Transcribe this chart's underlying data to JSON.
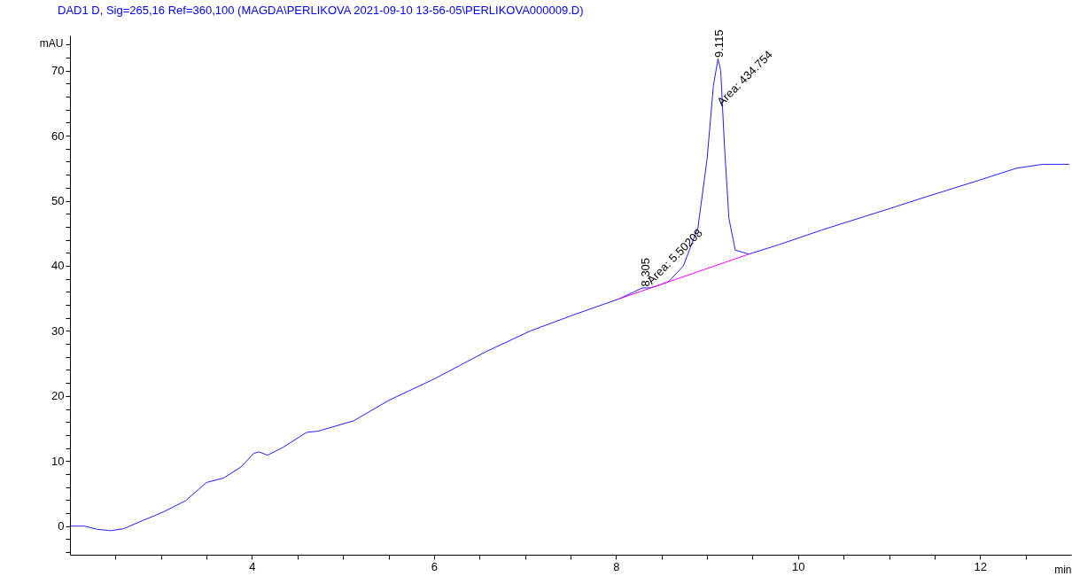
{
  "chart_data": {
    "type": "line",
    "title": "DAD1 D, Sig=265,16 Ref=360,100 (MAGDA\\PERLIKOVA 2021-09-10 13-56-05\\PERLIKOVA000009.D)",
    "xlabel": "min",
    "ylabel": "mAU",
    "xlim": [
      2,
      13
    ],
    "ylim": [
      -4.4,
      75.4
    ],
    "xticks": [
      {
        "value": 2.5,
        "label": null
      },
      {
        "value": 3,
        "label": null
      },
      {
        "value": 3.5,
        "label": null
      },
      4,
      {
        "value": 4.5,
        "label": null
      },
      {
        "value": 5,
        "label": null
      },
      {
        "value": 5.5,
        "label": null
      },
      6,
      {
        "value": 6.5,
        "label": null
      },
      {
        "value": 7,
        "label": null
      },
      {
        "value": 7.5,
        "label": null
      },
      8,
      {
        "value": 8.5,
        "label": null
      },
      {
        "value": 9,
        "label": null
      },
      {
        "value": 9.5,
        "label": null
      },
      10,
      {
        "value": 10.5,
        "label": null
      },
      {
        "value": 11,
        "label": null
      },
      {
        "value": 11.5,
        "label": null
      },
      12,
      {
        "value": 12.5,
        "label": null
      }
    ],
    "yticks": [
      {
        "value": -4,
        "label": null
      },
      {
        "value": -2,
        "label": null
      },
      0,
      {
        "value": 2,
        "label": null
      },
      {
        "value": 4,
        "label": null
      },
      {
        "value": 6,
        "label": null
      },
      {
        "value": 8,
        "label": null
      },
      10,
      {
        "value": 12,
        "label": null
      },
      {
        "value": 14,
        "label": null
      },
      {
        "value": 16,
        "label": null
      },
      {
        "value": 18,
        "label": null
      },
      20,
      {
        "value": 22,
        "label": null
      },
      {
        "value": 24,
        "label": null
      },
      {
        "value": 26,
        "label": null
      },
      {
        "value": 28,
        "label": null
      },
      30,
      {
        "value": 32,
        "label": null
      },
      {
        "value": 34,
        "label": null
      },
      {
        "value": 36,
        "label": null
      },
      {
        "value": 38,
        "label": null
      },
      40,
      {
        "value": 42,
        "label": null
      },
      {
        "value": 44,
        "label": null
      },
      {
        "value": 46,
        "label": null
      },
      {
        "value": 48,
        "label": null
      },
      50,
      {
        "value": 52,
        "label": null
      },
      {
        "value": 54,
        "label": null
      },
      {
        "value": 56,
        "label": null
      },
      {
        "value": 58,
        "label": null
      },
      60,
      {
        "value": 62,
        "label": null
      },
      {
        "value": 64,
        "label": null
      },
      {
        "value": 66,
        "label": null
      },
      {
        "value": 68,
        "label": null
      },
      70,
      {
        "value": 72,
        "label": null
      },
      {
        "value": 74,
        "label": null
      }
    ],
    "series": [
      {
        "color": "#2020ff",
        "x": [
          2.01,
          2.16,
          2.3,
          2.45,
          2.59,
          2.79,
          3.03,
          3.27,
          3.5,
          3.69,
          3.88,
          4.02,
          4.08,
          4.17,
          4.34,
          4.6,
          4.73,
          5.12,
          5.5,
          6.0,
          6.57,
          7.06,
          7.54,
          8.03,
          8.29,
          8.37,
          8.45,
          8.58,
          8.74,
          8.9,
          9.0,
          9.07,
          9.12,
          9.15,
          9.19,
          9.24,
          9.31,
          9.46,
          9.78,
          10.26,
          10.94,
          11.43,
          12.0,
          12.4,
          12.69,
          12.98
        ],
        "values": [
          0,
          0,
          -0.5,
          -0.7,
          -0.4,
          0.8,
          2.2,
          3.9,
          6.7,
          7.4,
          9.1,
          11.2,
          11.4,
          10.9,
          12.1,
          14.4,
          14.6,
          16.2,
          19.3,
          22.6,
          26.8,
          30.0,
          32.5,
          34.9,
          36.6,
          36.6,
          36.9,
          37.6,
          40.0,
          45.9,
          56.4,
          67.7,
          71.8,
          70.0,
          58.7,
          47.3,
          42.4,
          41.8,
          43.2,
          45.5,
          48.5,
          50.7,
          53.2,
          55.0,
          55.6,
          55.6
        ]
      },
      {
        "type": "line",
        "color": "#ff00ff",
        "x": [
          8.03,
          9.46
        ],
        "values": [
          34.9,
          41.8
        ]
      }
    ],
    "annotations": [
      {
        "text": "8.305",
        "x": 8.305,
        "y": 36.8
      },
      {
        "text": "Area: 5.50208",
        "x": 8.4,
        "y": 36.6
      },
      {
        "text": "9.115",
        "x": 9.115,
        "y": 72
      },
      {
        "text": "Area: 434.754",
        "x": 9.17,
        "y": 64
      }
    ]
  }
}
